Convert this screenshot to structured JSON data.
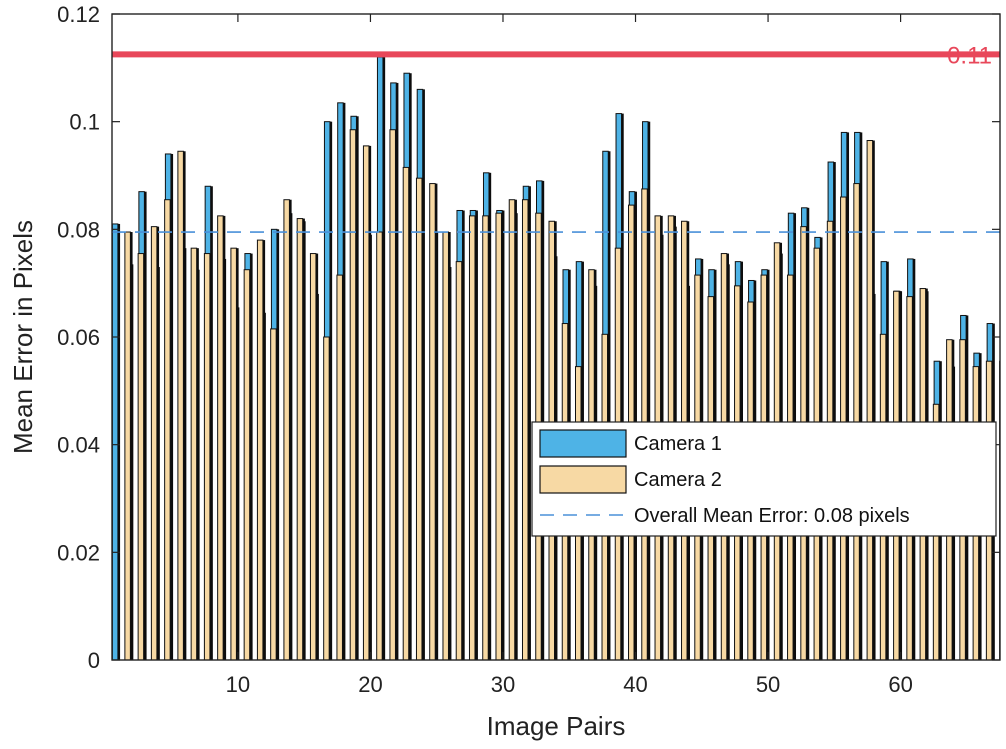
{
  "chart_data": {
    "type": "bar",
    "title": "",
    "xlabel": "Image Pairs",
    "ylabel": "Mean Error in Pixels",
    "xlim": [
      0.5,
      67.5
    ],
    "ylim": [
      0,
      0.12
    ],
    "xticks": [
      10,
      20,
      30,
      40,
      50,
      60
    ],
    "xtick_labels": [
      "10",
      "20",
      "30",
      "40",
      "50",
      "60"
    ],
    "yticks": [
      0,
      0.02,
      0.04,
      0.06,
      0.08,
      0.1,
      0.12
    ],
    "ytick_labels": [
      "0",
      "0.02",
      "0.04",
      "0.06",
      "0.08",
      "0.1",
      "0.12"
    ],
    "grid": false,
    "legend_position": "bottom-right",
    "categories": [
      1,
      2,
      3,
      4,
      5,
      6,
      7,
      8,
      9,
      10,
      11,
      12,
      13,
      14,
      15,
      16,
      17,
      18,
      19,
      20,
      21,
      22,
      23,
      24,
      25,
      26,
      27,
      28,
      29,
      30,
      31,
      32,
      33,
      34,
      35,
      36,
      37,
      38,
      39,
      40,
      41,
      42,
      43,
      44,
      45,
      46,
      47,
      48,
      49,
      50,
      51,
      52,
      53,
      54,
      55,
      56,
      57,
      58,
      59,
      60,
      61,
      62,
      63,
      64,
      65,
      66,
      67
    ],
    "series": [
      {
        "name": "Camera 1",
        "color": "#4EB3E6",
        "values": [
          0.081,
          0.0735,
          0.087,
          0.073,
          0.094,
          0.0765,
          0.0725,
          0.088,
          0.0745,
          0.0655,
          0.0755,
          0.0645,
          0.08,
          0.083,
          0.0815,
          0.068,
          0.1,
          0.1035,
          0.101,
          0.079,
          0.112,
          0.1072,
          0.109,
          0.106,
          0.0795,
          0.073,
          0.0835,
          0.0835,
          0.0905,
          0.0835,
          0.083,
          0.088,
          0.089,
          0.075,
          0.0725,
          0.074,
          0.0695,
          0.0945,
          0.1015,
          0.087,
          0.1,
          0.079,
          0.0805,
          0.0695,
          0.0745,
          0.0725,
          0.0735,
          0.074,
          0.0705,
          0.0725,
          0.0755,
          0.083,
          0.084,
          0.0785,
          0.0925,
          0.098,
          0.098,
          0.068,
          0.074,
          0.0685,
          0.0745,
          0.0685,
          0.0555,
          0.0545,
          0.064,
          0.057,
          0.0625
        ]
      },
      {
        "name": "Camera 2",
        "color": "#F7D9A4",
        "values": [
          0.0795,
          0.0755,
          0.0805,
          0.0855,
          0.0945,
          0.0765,
          0.0755,
          0.0825,
          0.0765,
          0.0725,
          0.078,
          0.0615,
          0.0855,
          0.082,
          0.0755,
          0.06,
          0.0715,
          0.0985,
          0.0955,
          0.0795,
          0.0985,
          0.0915,
          0.0895,
          0.0885,
          0.0795,
          0.074,
          0.0825,
          0.0825,
          0.083,
          0.0855,
          0.0855,
          0.083,
          0.0815,
          0.0625,
          0.0545,
          0.0725,
          0.0605,
          0.0765,
          0.0845,
          0.0875,
          0.0825,
          0.0825,
          0.0815,
          0.0715,
          0.0675,
          0.0755,
          0.0695,
          0.0665,
          0.0715,
          0.0775,
          0.0715,
          0.0805,
          0.0765,
          0.0815,
          0.086,
          0.0885,
          0.0965,
          0.0605,
          0.0685,
          0.0675,
          0.069,
          0.0475,
          0.0595,
          0.0595,
          0.0545,
          0.0555,
          0.0555
        ]
      }
    ],
    "reference_lines": [
      {
        "type": "horizontal",
        "value": 0.0795,
        "style": "dashed",
        "color": "#4A90D9",
        "label": "Overall Mean Error: 0.08 pixels"
      },
      {
        "type": "horizontal",
        "value": 0.1125,
        "style": "solid",
        "color": "#E8475A",
        "label": "0.11"
      }
    ],
    "legend": [
      {
        "label": "Camera 1",
        "kind": "patch",
        "color": "#4EB3E6"
      },
      {
        "label": "Camera 2",
        "kind": "patch",
        "color": "#F7D9A4"
      },
      {
        "label": "Overall Mean Error: 0.08 pixels",
        "kind": "dashed-line",
        "color": "#4A90D9"
      }
    ]
  }
}
